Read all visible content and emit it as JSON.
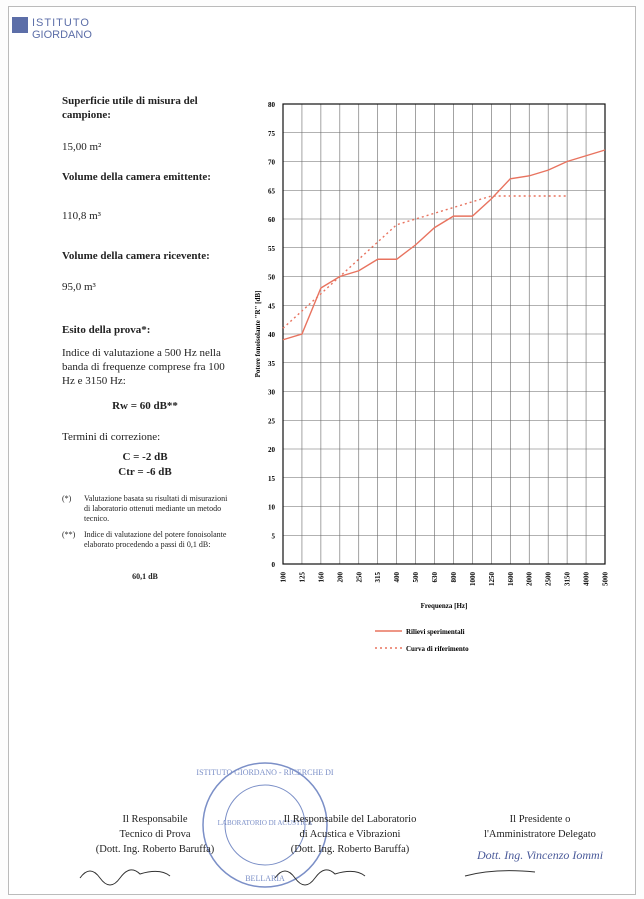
{
  "header": {
    "logo_top": "ISTITUTO",
    "logo_bottom": "GIORDANO"
  },
  "left": {
    "surface_label": "Superficie utile di misura del campione:",
    "surface_value": "15,00 m²",
    "emitting_label": "Volume della camera emittente:",
    "emitting_value": "110,8 m³",
    "receiving_label": "Volume della camera ricevente:",
    "receiving_value": "95,0 m³",
    "result_label": "Esito della prova*:",
    "result_text": "Indice di valutazione a 500 Hz nella banda di frequenze comprese fra 100 Hz e 3150 Hz:",
    "rw": "Rw = 60 dB**",
    "correction_label": "Termini di correzione:",
    "c": "C = -2 dB",
    "ctr": "Ctr = -6 dB",
    "note1_mark": "(*)",
    "note1": "Valutazione basata su risultati di misurazioni di laboratorio ottenuti mediante un metodo tecnico.",
    "note2_mark": "(**)",
    "note2": "Indice di valutazione del potere fonoisolante elaborato procedendo a passi di 0,1 dB:",
    "note2_value": "60,1 dB"
  },
  "chart_data": {
    "type": "line",
    "x_label": "Frequenza [Hz]",
    "y_label": "Potere fonoisolante \"R\" [dB]",
    "categories": [
      "100",
      "125",
      "160",
      "200",
      "250",
      "315",
      "400",
      "500",
      "630",
      "800",
      "1000",
      "1250",
      "1600",
      "2000",
      "2500",
      "3150",
      "4000",
      "5000"
    ],
    "series": [
      {
        "name": "Rilievi sperimentali",
        "color": "#e8735f",
        "dash": "solid",
        "values": [
          39,
          40,
          48,
          50,
          51,
          53,
          53,
          55.5,
          58.5,
          60.5,
          60.5,
          63.5,
          67,
          67.5,
          68.5,
          70,
          71,
          72
        ]
      },
      {
        "name": "Curva di riferimento",
        "color": "#e8735f",
        "dash": "dotted",
        "values": [
          41,
          44,
          47,
          50,
          53,
          56,
          59,
          60,
          61,
          62,
          63,
          64,
          64,
          64,
          64,
          64,
          null,
          null
        ]
      }
    ],
    "ylim": [
      0,
      80
    ],
    "yticks": [
      0,
      5,
      10,
      15,
      20,
      25,
      30,
      35,
      40,
      45,
      50,
      55,
      60,
      65,
      70,
      75,
      80
    ],
    "grid": true
  },
  "stamp": {
    "ring": "ISTITUTO GIORDANO - RICERCHE DI",
    "center": "LABORATORIO DI ACUSTICA",
    "bottom": "BELLARIA"
  },
  "footer": {
    "block1": [
      "Il Responsabile",
      "Tecnico di Prova",
      "(Dott. Ing. Roberto Baruffa)"
    ],
    "block2": [
      "Il Responsabile del Laboratorio",
      "di Acustica e Vibrazioni",
      "(Dott. Ing. Roberto Baruffa)"
    ],
    "block3": [
      "Il Presidente o",
      "l'Amministratore Delegato"
    ],
    "signature3": "Dott. Ing. Vincenzo Iommi"
  }
}
